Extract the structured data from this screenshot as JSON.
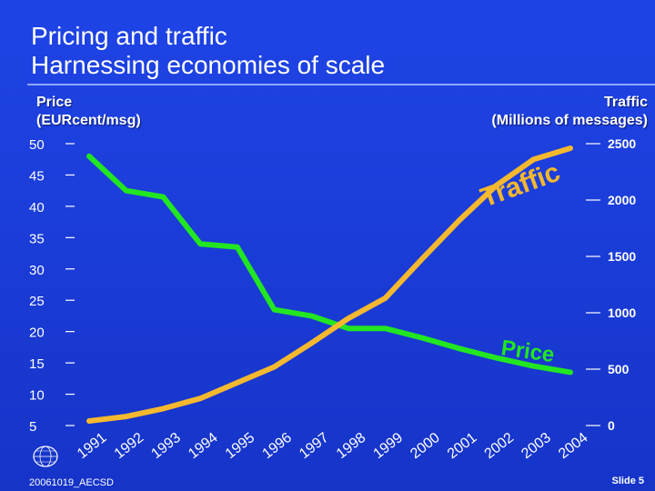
{
  "slide": {
    "title_line1": "Pricing and traffic",
    "title_line2": "Harnessing economies of scale",
    "footer": "20061019_AECSD",
    "slide_number": "Slide 5"
  },
  "colors": {
    "background": "#1c3cd0",
    "price_series": "#22e622",
    "traffic_series": "#f5b82e",
    "text": "#ffffff"
  },
  "chart_data": {
    "type": "line",
    "x": [
      "1991",
      "1992",
      "1993",
      "1994",
      "1995",
      "1996",
      "1997",
      "1998",
      "1999",
      "2000",
      "2001",
      "2002",
      "2003",
      "2004"
    ],
    "left_axis": {
      "label_line1": "Price",
      "label_line2": "(EURcent/msg)",
      "ticks": [
        "50",
        "45",
        "40",
        "35",
        "30",
        "25",
        "20",
        "15",
        "10",
        "5"
      ],
      "tick_values": [
        50,
        45,
        40,
        35,
        30,
        25,
        20,
        15,
        10,
        5
      ],
      "range": [
        5,
        50
      ]
    },
    "right_axis": {
      "label_line1": "Traffic",
      "label_line2": "(Millions of messages)",
      "ticks": [
        "2500",
        "2000",
        "1500",
        "1000",
        "500",
        "0"
      ],
      "tick_values": [
        2500,
        2000,
        1500,
        1000,
        500,
        0
      ],
      "range": [
        0,
        2500
      ]
    },
    "series": [
      {
        "name": "Price",
        "axis": "left",
        "x": [
          1991,
          1992,
          1993,
          1994,
          1995,
          1996,
          1997,
          1998,
          1999,
          2000,
          2001,
          2002,
          2003,
          2004
        ],
        "values": [
          48,
          42.5,
          41.5,
          34,
          33.5,
          23.5,
          22.5,
          20.5,
          20.5,
          19,
          17.3,
          15.8,
          14.5,
          13.5
        ]
      },
      {
        "name": "Traffic",
        "axis": "right",
        "x": [
          1991,
          1992,
          1993,
          1994,
          1995,
          1996,
          1997,
          1998,
          1999,
          2000,
          2001,
          2002,
          2003,
          2004
        ],
        "values": [
          40,
          80,
          150,
          240,
          380,
          520,
          730,
          950,
          1130,
          1480,
          1820,
          2130,
          2360,
          2460
        ]
      }
    ]
  }
}
